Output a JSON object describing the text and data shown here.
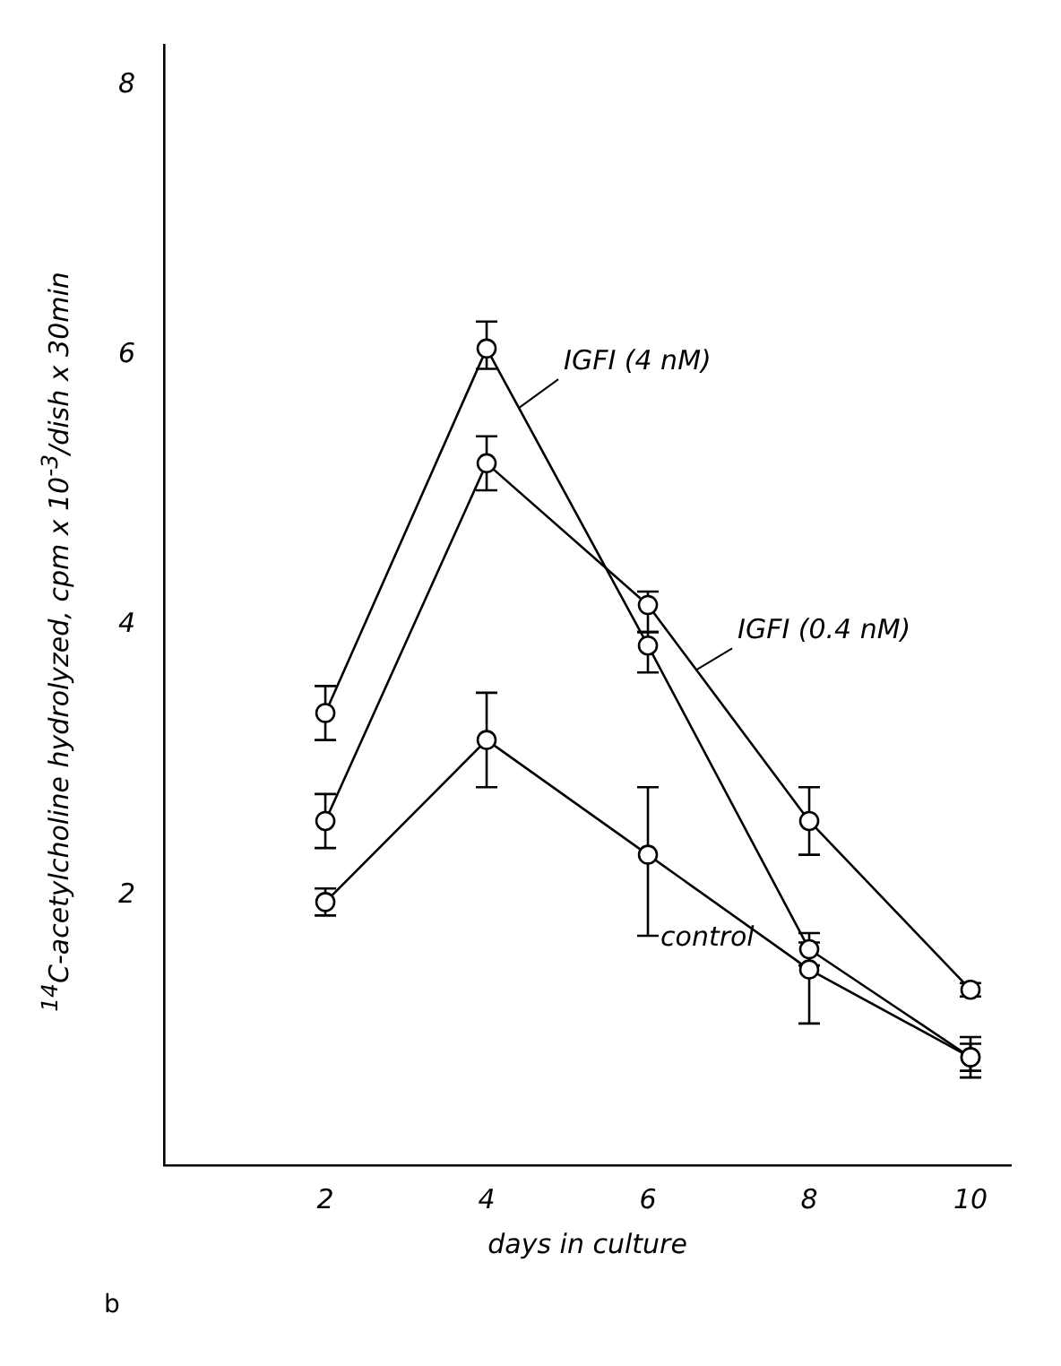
{
  "chart_data": {
    "type": "line",
    "xlabel": "days in culture",
    "ylabel": "$^{14}$C-acetylcholine hydrolyzed, cpm x 10$^{-3}$/dish x 30min",
    "x": [
      2,
      4,
      6,
      8,
      10
    ],
    "xlim": [
      0,
      10.5
    ],
    "xticks": [
      2,
      4,
      6,
      8,
      10
    ],
    "ylim": [
      0,
      8.3
    ],
    "yticks": [
      2,
      4,
      6,
      8
    ],
    "grid": false,
    "legend": false,
    "marker": "circle",
    "line_style": "solid",
    "series": [
      {
        "name": "IGFI (4 nM)",
        "color": "#000000",
        "values": [
          3.35,
          6.05,
          3.85,
          1.6,
          0.8
        ],
        "errors": [
          0.2,
          [
            5.9,
            6.25
          ],
          [
            3.65,
            3.95
          ],
          0.12,
          0.1
        ]
      },
      {
        "name": "IGFI (0.4 nM)",
        "color": "#000000",
        "values": [
          2.55,
          5.2,
          4.15,
          2.55,
          1.3
        ],
        "errors": [
          0.2,
          [
            5.0,
            5.4
          ],
          [
            3.95,
            4.25
          ],
          [
            2.3,
            2.8
          ],
          0.05
        ]
      },
      {
        "name": "control",
        "color": "#000000",
        "values": [
          1.95,
          3.15,
          2.3,
          1.45,
          0.8
        ],
        "errors": [
          0.1,
          [
            2.8,
            3.5
          ],
          [
            1.7,
            2.8
          ],
          [
            1.05,
            1.65
          ],
          0.15
        ]
      }
    ],
    "annotations": [
      "b"
    ]
  }
}
